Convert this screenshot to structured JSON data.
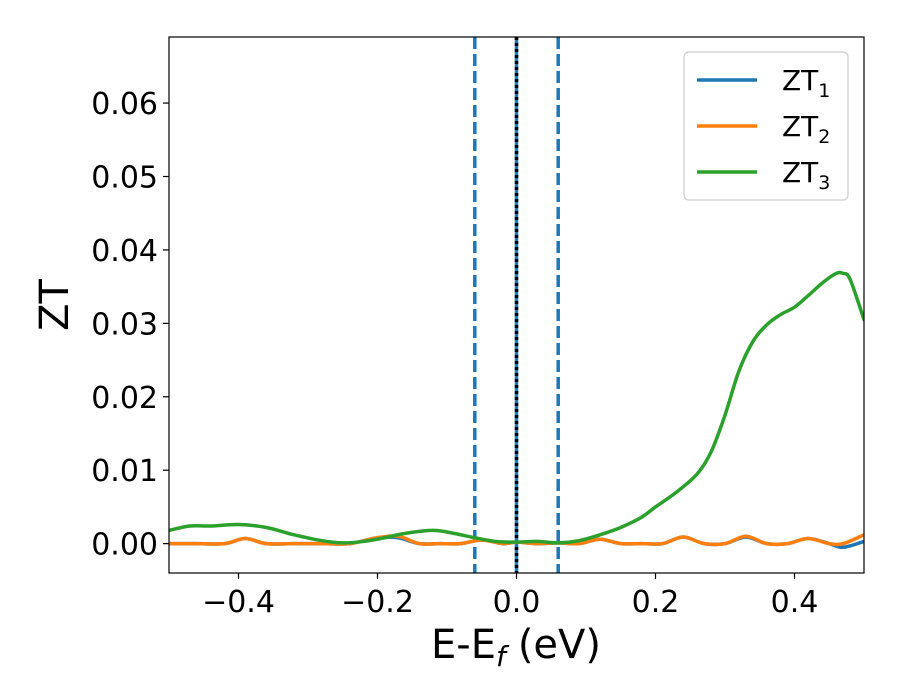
{
  "chart_data": {
    "type": "line",
    "xlabel": "E-E",
    "xlabel_sub": "f",
    "xlabel_unit": "(eV)",
    "ylabel": "ZT",
    "xlim": [
      -0.5,
      0.5
    ],
    "ylim": [
      -0.004,
      0.069
    ],
    "x_ticks": [
      -0.4,
      -0.2,
      0.0,
      0.2,
      0.4
    ],
    "x_tick_labels": [
      "−0.4",
      "−0.2",
      "0.0",
      "0.2",
      "0.4"
    ],
    "y_ticks": [
      0.0,
      0.01,
      0.02,
      0.03,
      0.04,
      0.05,
      0.06
    ],
    "y_tick_labels": [
      "0.00",
      "0.01",
      "0.02",
      "0.03",
      "0.04",
      "0.05",
      "0.06"
    ],
    "grid": false,
    "legend_position": "top-right",
    "vertical_lines": [
      {
        "x": -0.06,
        "style": "dashed",
        "color": "#1f77b4"
      },
      {
        "x": 0.06,
        "style": "dashed",
        "color": "#1f77b4"
      },
      {
        "x": 0.0,
        "style": "solid",
        "color": "#1f77b4"
      },
      {
        "x": 0.0,
        "style": "dotted",
        "color": "#000000"
      }
    ],
    "series": [
      {
        "name": "ZT",
        "sub": "1",
        "color": "#1f77b4",
        "x": [
          -0.5,
          -0.46,
          -0.42,
          -0.39,
          -0.36,
          -0.32,
          -0.28,
          -0.24,
          -0.2,
          -0.17,
          -0.14,
          -0.11,
          -0.08,
          -0.05,
          -0.02,
          0.0,
          0.03,
          0.06,
          0.09,
          0.12,
          0.15,
          0.18,
          0.21,
          0.24,
          0.27,
          0.3,
          0.33,
          0.36,
          0.39,
          0.42,
          0.45,
          0.47,
          0.5
        ],
        "y": [
          0.0,
          0.0,
          0.0,
          0.0007,
          0.0,
          0.0,
          0.0,
          0.0,
          0.0008,
          0.0008,
          0.0,
          0.0,
          0.0,
          0.0005,
          0.0,
          0.0002,
          0.0,
          0.0001,
          0.0,
          0.0006,
          0.0,
          0.0,
          0.0,
          0.0009,
          0.0,
          0.0,
          0.0009,
          0.0,
          0.0,
          0.0007,
          0.0,
          -0.0005,
          0.0003
        ]
      },
      {
        "name": "ZT",
        "sub": "2",
        "color": "#ff7f0e",
        "x": [
          -0.5,
          -0.46,
          -0.42,
          -0.39,
          -0.36,
          -0.32,
          -0.28,
          -0.24,
          -0.2,
          -0.17,
          -0.14,
          -0.11,
          -0.08,
          -0.05,
          -0.02,
          0.0,
          0.03,
          0.06,
          0.09,
          0.12,
          0.15,
          0.18,
          0.21,
          0.24,
          0.27,
          0.3,
          0.33,
          0.36,
          0.39,
          0.42,
          0.45,
          0.47,
          0.5
        ],
        "y": [
          0.0,
          0.0,
          0.0,
          0.0007,
          0.0,
          0.0,
          0.0,
          0.0,
          0.0008,
          0.001,
          0.0,
          0.0,
          0.0,
          0.0005,
          0.0,
          0.0002,
          0.0,
          0.0001,
          0.0,
          0.0006,
          0.0,
          0.0,
          0.0,
          0.0009,
          0.0,
          0.0,
          0.001,
          0.0,
          0.0,
          0.0007,
          0.0,
          0.0,
          0.0012
        ]
      },
      {
        "name": "ZT",
        "sub": "3",
        "color": "#2ca02c",
        "x": [
          -0.5,
          -0.47,
          -0.44,
          -0.4,
          -0.36,
          -0.32,
          -0.28,
          -0.25,
          -0.22,
          -0.19,
          -0.16,
          -0.12,
          -0.09,
          -0.06,
          -0.03,
          0.0,
          0.03,
          0.06,
          0.09,
          0.12,
          0.15,
          0.18,
          0.2,
          0.23,
          0.26,
          0.28,
          0.3,
          0.32,
          0.34,
          0.36,
          0.38,
          0.4,
          0.42,
          0.44,
          0.46,
          0.47,
          0.48,
          0.5
        ],
        "y": [
          0.0018,
          0.0024,
          0.0024,
          0.0026,
          0.0022,
          0.0012,
          0.0004,
          0.0001,
          0.0003,
          0.0008,
          0.0014,
          0.0018,
          0.0014,
          0.0008,
          0.0003,
          0.0002,
          0.0003,
          0.0001,
          0.0004,
          0.0012,
          0.0022,
          0.0036,
          0.005,
          0.007,
          0.0095,
          0.0125,
          0.0175,
          0.0235,
          0.0275,
          0.0298,
          0.0312,
          0.0322,
          0.0338,
          0.0355,
          0.0368,
          0.0368,
          0.036,
          0.0305
        ]
      }
    ]
  }
}
